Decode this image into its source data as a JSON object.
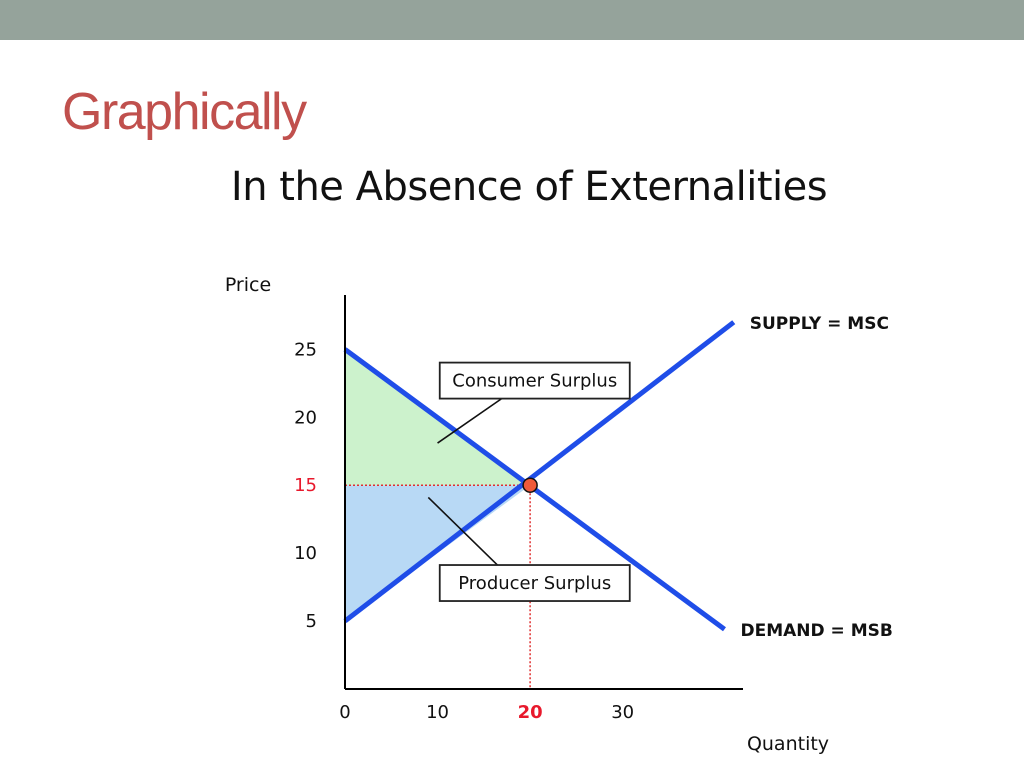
{
  "slide": {
    "title": "Graphically",
    "title_color": "#c0504d",
    "top_bar_color": "#95a39b"
  },
  "chart_data": {
    "type": "line",
    "title": "In the Absence of Externalities",
    "xlabel": "Quantity",
    "ylabel": "Price",
    "xlim": [
      0,
      43
    ],
    "ylim": [
      0,
      29
    ],
    "x_ticks": [
      {
        "value": 0,
        "label": "0",
        "highlight": false
      },
      {
        "value": 10,
        "label": "10",
        "highlight": false
      },
      {
        "value": 20,
        "label": "20",
        "highlight": true
      },
      {
        "value": 30,
        "label": "30",
        "highlight": false
      }
    ],
    "y_ticks": [
      {
        "value": 5,
        "label": "5",
        "highlight": false
      },
      {
        "value": 10,
        "label": "10",
        "highlight": false
      },
      {
        "value": 15,
        "label": "15",
        "highlight": true
      },
      {
        "value": 20,
        "label": "20",
        "highlight": false
      },
      {
        "value": 25,
        "label": "25",
        "highlight": false
      }
    ],
    "series": [
      {
        "name": "SUPPLY = MSC",
        "color": "#1f4de8",
        "points": [
          [
            0,
            5
          ],
          [
            42,
            27
          ]
        ]
      },
      {
        "name": "DEMAND = MSB",
        "color": "#1f4de8",
        "points": [
          [
            0,
            25
          ],
          [
            41,
            4.4
          ]
        ]
      }
    ],
    "equilibrium": {
      "x": 20,
      "y": 15,
      "color": "#f05a3a"
    },
    "reference_line_color": "#e03030",
    "highlight_color": "#e8192c",
    "regions": [
      {
        "name": "Consumer Surplus",
        "fill": "#ccf2cc",
        "points": [
          [
            0,
            25
          ],
          [
            20,
            15
          ],
          [
            0,
            15
          ]
        ]
      },
      {
        "name": "Producer Surplus",
        "fill": "#b8d9f5",
        "points": [
          [
            0,
            15
          ],
          [
            20,
            15
          ],
          [
            0,
            5
          ]
        ]
      }
    ],
    "annotations": [
      {
        "text": "Consumer Surplus",
        "box_at": [
          20.5,
          22.7
        ],
        "pointer_from": [
          17.2,
          21.5
        ],
        "pointer_to": [
          10,
          18.1
        ]
      },
      {
        "text": "Producer Surplus",
        "box_at": [
          20.5,
          7.8
        ],
        "pointer_from": [
          16.5,
          9.1
        ],
        "pointer_to": [
          9,
          14.1
        ]
      }
    ],
    "grid": false
  }
}
